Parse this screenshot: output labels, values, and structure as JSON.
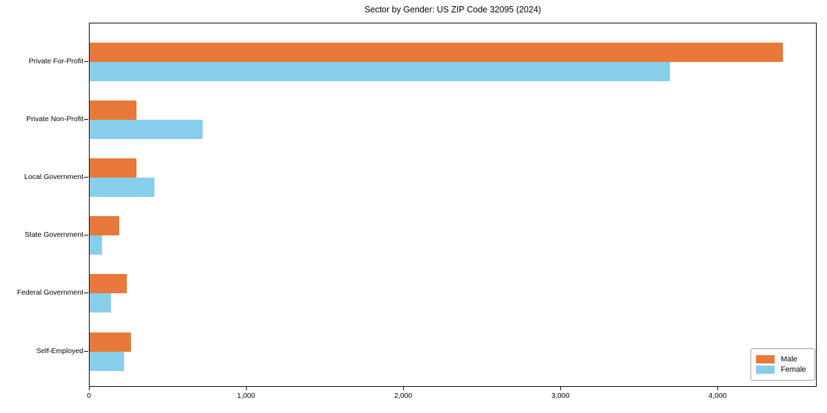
{
  "chart_data": {
    "type": "bar",
    "orientation": "horizontal",
    "title": "Sector by Gender: US ZIP Code 32095 (2024)",
    "categories": [
      "Private For-Profit",
      "Private Non-Profit",
      "Local Government",
      "State Government",
      "Federal Government",
      "Self-Employed"
    ],
    "series": [
      {
        "name": "Male",
        "color": "#e8793a",
        "values": [
          4410,
          300,
          300,
          190,
          235,
          265
        ]
      },
      {
        "name": "Female",
        "color": "#87ceeb",
        "values": [
          3690,
          720,
          410,
          80,
          135,
          220
        ]
      }
    ],
    "xlabel": "",
    "ylabel": "",
    "xlim": [
      0,
      4630
    ],
    "xticks": [
      0,
      1000,
      2000,
      3000,
      4000
    ],
    "xtick_labels": [
      "0",
      "1,000",
      "2,000",
      "3,000",
      "4,000"
    ],
    "grid": false,
    "plot_background": "#ffffff",
    "spine_color": "#000000",
    "legend": {
      "position": "lower right",
      "entries": [
        "Male",
        "Female"
      ]
    }
  }
}
